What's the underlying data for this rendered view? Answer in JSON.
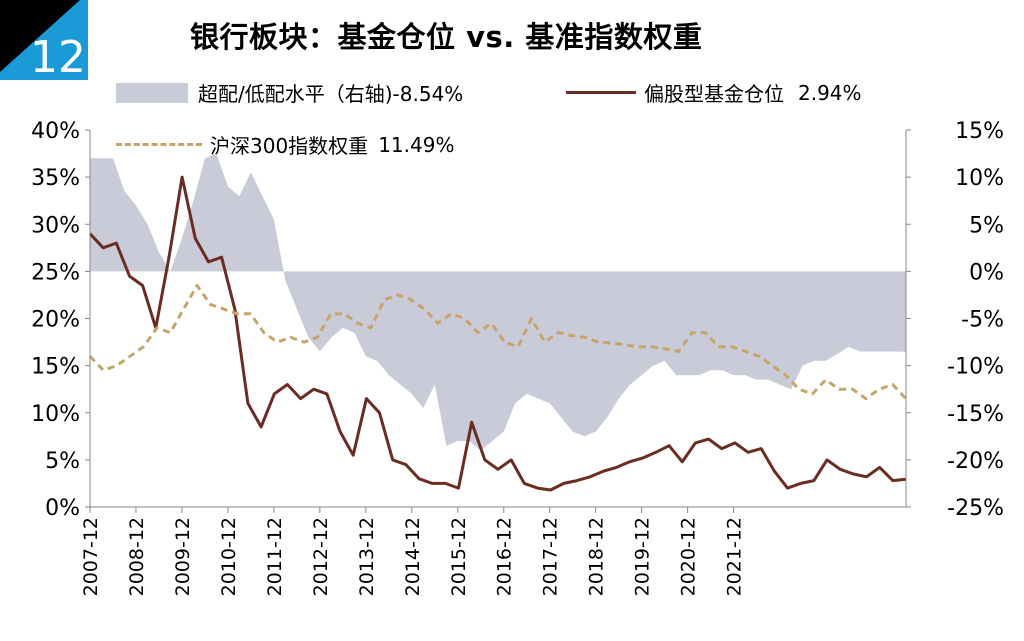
{
  "badge": {
    "number": "12",
    "colors": {
      "primary": "#1a9ad6",
      "secondary": "#000000"
    }
  },
  "title": "银行板块：基金仓位 vs. 基准指数权重",
  "legend": {
    "band": {
      "label": "超配/低配水平（右轴)-8.54%",
      "color": "#c9cbd8"
    },
    "fund": {
      "label": "偏股型基金仓位",
      "value": "2.94%",
      "color": "#6b2d22"
    },
    "index": {
      "label": "沪深300指数权重",
      "value": "11.49%",
      "color": "#c8a46a"
    }
  },
  "chart_data": {
    "type": "line",
    "x_tick_labels": [
      "2007-12",
      "2008-12",
      "2009-12",
      "2010-12",
      "2011-12",
      "2012-12",
      "2013-12",
      "2014-12",
      "2015-12",
      "2016-12",
      "2017-12",
      "2018-12",
      "2019-12",
      "2020-12",
      "2021-12"
    ],
    "y_left": {
      "ticks": [
        "0%",
        "5%",
        "10%",
        "15%",
        "20%",
        "25%",
        "30%",
        "35%",
        "40%"
      ],
      "range": [
        0,
        40
      ],
      "unit": "%"
    },
    "y_right": {
      "ticks": [
        "-25%",
        "-20%",
        "-15%",
        "-10%",
        "-5%",
        "0%",
        "5%",
        "10%",
        "15%"
      ],
      "range": [
        -25,
        15
      ],
      "unit": "%"
    },
    "grid": false,
    "x_start": "2007-12",
    "series": [
      {
        "name": "超配/低配水平（右轴)",
        "type": "area",
        "axis": "right",
        "last_value": -8.54,
        "values": [
          12,
          12,
          12,
          8.5,
          7,
          5,
          2,
          0,
          3.5,
          7.5,
          12,
          12.5,
          9,
          8,
          10.5,
          8,
          5.5,
          -1,
          -4,
          -7,
          -8.5,
          -7,
          -6,
          -6.5,
          -9,
          -9.5,
          -11,
          -12,
          -13,
          -14.5,
          -12,
          -18.5,
          -18,
          -18,
          -19,
          -18,
          -17,
          -14,
          -13,
          -13.5,
          -14,
          -15.5,
          -17,
          -17.5,
          -17,
          -15.5,
          -13.5,
          -12,
          -11,
          -10,
          -9.5,
          -11,
          -11,
          -11,
          -10.5,
          -10.5,
          -11,
          -11,
          -11.5,
          -11.5,
          -12,
          -12.5,
          -10,
          -9.5,
          -9.5,
          -8.8,
          -8,
          -8.5,
          -8.5,
          -8.5,
          -8.5,
          -8.54
        ]
      },
      {
        "name": "偏股型基金仓位",
        "type": "line",
        "axis": "left",
        "last_value": 2.94,
        "values": [
          29,
          27.5,
          28,
          24.5,
          23.5,
          19,
          26.5,
          35,
          28.5,
          26,
          26.5,
          21,
          11,
          8.5,
          12,
          13,
          11.5,
          12.5,
          12,
          8,
          5.5,
          11.5,
          10,
          5,
          4.5,
          3,
          2.5,
          2.5,
          2,
          9,
          5,
          4,
          5,
          2.5,
          2,
          1.8,
          2.5,
          2.8,
          3.2,
          3.8,
          4.2,
          4.8,
          5.2,
          5.8,
          6.5,
          4.8,
          6.8,
          7.2,
          6.2,
          6.8,
          5.8,
          6.2,
          3.8,
          2,
          2.5,
          2.8,
          5,
          4,
          3.5,
          3.2,
          4.2,
          2.8,
          2.94
        ]
      },
      {
        "name": "沪深300指数权重",
        "type": "line",
        "axis": "left",
        "dashed": true,
        "last_value": 11.49,
        "values": [
          16,
          14.5,
          15,
          16,
          17,
          19,
          18.5,
          21,
          23.5,
          21.5,
          21,
          20.5,
          20.5,
          18.5,
          17.5,
          18,
          17.5,
          18,
          20.5,
          20.5,
          19.5,
          19,
          22,
          22.5,
          22,
          21,
          19.5,
          20.5,
          20,
          18.5,
          19.5,
          17.5,
          17,
          20,
          17.5,
          18.5,
          18.2,
          18,
          17.5,
          17.4,
          17.2,
          17,
          17,
          16.8,
          16.5,
          18.5,
          18.5,
          17,
          17,
          16.5,
          16,
          15,
          14,
          12.5,
          12,
          13.5,
          12.5,
          12.5,
          11.5,
          12.5,
          13,
          11.49
        ]
      }
    ]
  }
}
